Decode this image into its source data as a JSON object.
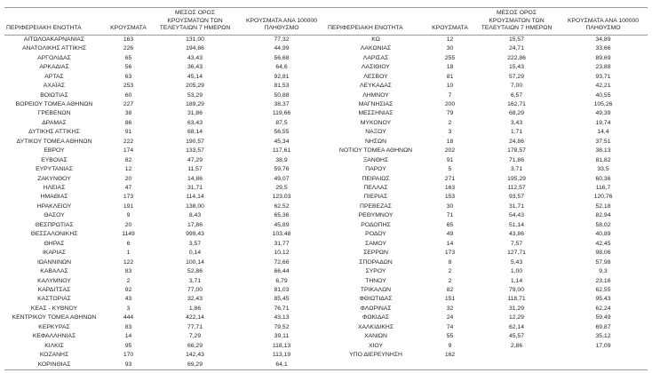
{
  "table": {
    "headers": {
      "region": "ΠΕΡΙΦΕΡΕΙΑΚΗ ΕΝΟΤΗΤΑ",
      "cases": "ΚΡΟΥΣΜΑΤΑ",
      "avg7": "ΜΕΣΟΣ ΟΡΟΣ ΚΡΟΥΣΜΑΤΩΝ ΤΩΝ ΤΕΛΕΥΤΑΙΩΝ 7 ΗΜΕΡΩΝ",
      "per100k": "ΚΡΟΥΣΜΑΤΑ ΑΝΑ 100000 ΠΛΗΘΥΣΜΟ"
    },
    "left_rows": [
      [
        "ΑΙΤΩΛΟΑΚΑΡΝΑΝΙΑΣ",
        "163",
        "131,00",
        "77,32"
      ],
      [
        "ΑΝΑΤΟΛΙΚΗΣ ΑΤΤΙΚΗΣ",
        "226",
        "194,86",
        "44,99"
      ],
      [
        "ΑΡΓΟΛΙΔΑΣ",
        "65",
        "43,43",
        "56,68"
      ],
      [
        "ΑΡΚΑΔΙΑΣ",
        "56",
        "36,43",
        "64,6"
      ],
      [
        "ΑΡΤΑΣ",
        "63",
        "45,14",
        "92,81"
      ],
      [
        "ΑΧΑΪΑΣ",
        "253",
        "205,29",
        "81,53"
      ],
      [
        "ΒΟΙΩΤΙΑΣ",
        "60",
        "53,29",
        "50,88"
      ],
      [
        "ΒΟΡΕΙΟΥ ΤΟΜΕΑ ΑΘΗΝΩΝ",
        "227",
        "189,29",
        "38,37"
      ],
      [
        "ΓΡΕΒΕΝΩΝ",
        "38",
        "31,86",
        "119,66"
      ],
      [
        "ΔΡΑΜΑΣ",
        "86",
        "63,43",
        "87,5"
      ],
      [
        "ΔΥΤΙΚΗΣ ΑΤΤΙΚΗΣ",
        "91",
        "68,14",
        "56,55"
      ],
      [
        "ΔΥΤΙΚΟΥ ΤΟΜΕΑ ΑΘΗΝΩΝ",
        "222",
        "190,57",
        "45,34"
      ],
      [
        "ΕΒΡΟΥ",
        "174",
        "133,57",
        "117,61"
      ],
      [
        "ΕΥΒΟΙΑΣ",
        "82",
        "47,29",
        "38,9"
      ],
      [
        "ΕΥΡΥΤΑΝΙΑΣ",
        "12",
        "11,57",
        "59,76"
      ],
      [
        "ΖΑΚΥΝΘΟΥ",
        "20",
        "14,86",
        "49,07"
      ],
      [
        "ΗΛΕΙΑΣ",
        "47",
        "31,71",
        "29,5"
      ],
      [
        "ΗΜΑΘΙΑΣ",
        "173",
        "114,14",
        "123,03"
      ],
      [
        "ΗΡΑΚΛΕΙΟΥ",
        "191",
        "138,00",
        "62,52"
      ],
      [
        "ΘΑΣΟΥ",
        "9",
        "8,43",
        "65,36"
      ],
      [
        "ΘΕΣΠΡΩΤΙΑΣ",
        "20",
        "17,86",
        "45,89"
      ],
      [
        "ΘΕΣΣΑΛΟΝΙΚΗΣ",
        "1149",
        "999,43",
        "103,48"
      ],
      [
        "ΘΗΡΑΣ",
        "6",
        "3,57",
        "31,77"
      ],
      [
        "ΙΚΑΡΙΑΣ",
        "1",
        "0,14",
        "10,12"
      ],
      [
        "ΙΩΑΝΝΙΝΩΝ",
        "122",
        "100,14",
        "72,66"
      ],
      [
        "ΚΑΒΑΛΑΣ",
        "83",
        "52,86",
        "66,44"
      ],
      [
        "ΚΑΛΥΜΝΟΥ",
        "2",
        "3,71",
        "6,79"
      ],
      [
        "ΚΑΡΔΙΤΣΑΣ",
        "92",
        "77,00",
        "81,03"
      ],
      [
        "ΚΑΣΤΟΡΙΑΣ",
        "43",
        "32,43",
        "85,45"
      ],
      [
        "ΚΕΑΣ - ΚΥΘΝΟΥ",
        "3",
        "1,86",
        "76,71"
      ],
      [
        "ΚΕΝΤΡΙΚΟΥ ΤΟΜΕΑ ΑΘΗΝΩΝ",
        "444",
        "422,14",
        "43,13"
      ],
      [
        "ΚΕΡΚΥΡΑΣ",
        "83",
        "77,71",
        "79,52"
      ],
      [
        "ΚΕΦΑΛΛΗΝΙΑΣ",
        "14",
        "7,29",
        "39,11"
      ],
      [
        "ΚΙΛΚΙΣ",
        "95",
        "66,29",
        "118,13"
      ],
      [
        "ΚΟΖΑΝΗΣ",
        "170",
        "142,43",
        "113,19"
      ],
      [
        "ΚΟΡΙΝΘΙΑΣ",
        "93",
        "69,29",
        "64,1"
      ]
    ],
    "right_rows": [
      [
        "ΚΩ",
        "12",
        "15,57",
        "34,89"
      ],
      [
        "ΛΑΚΩΝΙΑΣ",
        "30",
        "24,71",
        "33,66"
      ],
      [
        "ΛΑΡΙΣΑΣ",
        "255",
        "222,86",
        "89,69"
      ],
      [
        "ΛΑΣΙΘΙΟΥ",
        "18",
        "15,43",
        "23,88"
      ],
      [
        "ΛΕΣΒΟΥ",
        "81",
        "57,29",
        "93,71"
      ],
      [
        "ΛΕΥΚΑΔΑΣ",
        "10",
        "7,00",
        "42,21"
      ],
      [
        "ΛΗΜΝΟΥ",
        "7",
        "6,57",
        "40,55"
      ],
      [
        "ΜΑΓΝΗΣΙΑΣ",
        "200",
        "162,71",
        "105,26"
      ],
      [
        "ΜΕΣΣΗΝΙΑΣ",
        "79",
        "68,29",
        "49,39"
      ],
      [
        "ΜΥΚΟΝΟΥ",
        "2",
        "3,43",
        "19,74"
      ],
      [
        "ΝΑΞΟΥ",
        "3",
        "1,71",
        "14,4"
      ],
      [
        "ΝΗΣΩΝ",
        "18",
        "24,86",
        "37,51"
      ],
      [
        "ΝΟΤΙΟΥ ΤΟΜΕΑ ΑΘΗΝΩΝ",
        "202",
        "178,57",
        "38,13"
      ],
      [
        "ΞΑΝΘΗΣ",
        "91",
        "71,86",
        "81,82"
      ],
      [
        "ΠΑΡΟΥ",
        "5",
        "3,71",
        "33,5"
      ],
      [
        "ΠΕΙΡΑΙΩΣ",
        "271",
        "195,29",
        "60,36"
      ],
      [
        "ΠΕΛΛΑΣ",
        "163",
        "112,57",
        "116,7"
      ],
      [
        "ΠΙΕΡΙΑΣ",
        "153",
        "93,57",
        "120,76"
      ],
      [
        "ΠΡΕΒΕΖΑΣ",
        "30",
        "31,71",
        "52,18"
      ],
      [
        "ΡΕΘΥΜΝΟΥ",
        "71",
        "54,43",
        "82,94"
      ],
      [
        "ΡΟΔΟΠΗΣ",
        "65",
        "51,14",
        "58,02"
      ],
      [
        "ΡΟΔΟΥ",
        "49",
        "43,86",
        "40,89"
      ],
      [
        "ΣΑΜΟΥ",
        "14",
        "7,57",
        "42,45"
      ],
      [
        "ΣΕΡΡΩΝ",
        "173",
        "127,71",
        "98,06"
      ],
      [
        "ΣΠΟΡΑΔΩΝ",
        "8",
        "5,43",
        "57,98"
      ],
      [
        "ΣΥΡΟΥ",
        "2",
        "1,00",
        "9,3"
      ],
      [
        "ΤΗΝΟΥ",
        "2",
        "1,14",
        "23,16"
      ],
      [
        "ΤΡΙΚΑΛΩΝ",
        "82",
        "79,00",
        "62,55"
      ],
      [
        "ΦΘΙΩΤΙΔΑΣ",
        "151",
        "118,71",
        "95,43"
      ],
      [
        "ΦΛΩΡΙΝΑΣ",
        "32",
        "31,29",
        "62,24"
      ],
      [
        "ΦΩΚΙΔΑΣ",
        "24",
        "12,29",
        "59,49"
      ],
      [
        "ΧΑΛΚΙΔΙΚΗΣ",
        "74",
        "62,14",
        "69,87"
      ],
      [
        "ΧΑΝΙΩΝ",
        "55",
        "45,57",
        "35,12"
      ],
      [
        "ΧΙΟΥ",
        "9",
        "2,86",
        "17,09"
      ],
      [
        "ΥΠΟ ΔΙΕΡΕΥΝΗΣΗ",
        "162",
        "",
        ""
      ]
    ]
  }
}
